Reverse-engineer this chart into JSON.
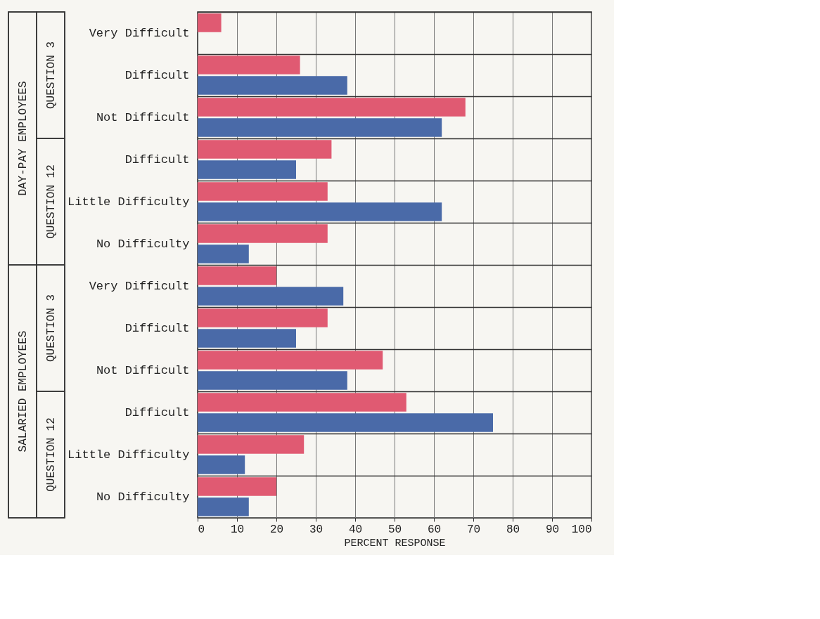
{
  "chart_data": {
    "type": "bar",
    "orientation": "horizontal",
    "xlabel": "PERCENT RESPONSE",
    "categories": [
      "Very Difficult",
      "Difficult",
      "Not Difficult",
      "Difficult",
      "Little Difficulty",
      "No Difficulty",
      "Very Difficult",
      "Difficult",
      "Not Difficult",
      "Difficult",
      "Little Difficulty",
      "No Difficulty"
    ],
    "series": [
      {
        "color": "#e05a72",
        "values": [
          6,
          26,
          68,
          34,
          33,
          33,
          20,
          33,
          47,
          53,
          27,
          20
        ]
      },
      {
        "color": "#4a6aa8",
        "values": [
          0,
          38,
          62,
          25,
          62,
          13,
          37,
          25,
          38,
          75,
          12,
          13
        ]
      }
    ],
    "xlim": [
      0,
      100
    ],
    "xticks": [
      0,
      10,
      20,
      30,
      40,
      50,
      60,
      70,
      80,
      90,
      100
    ],
    "grid": true,
    "annotations": [
      "DAY-PAY EMPLOYEES",
      "SALARIED EMPLOYEES",
      "QUESTION 3",
      "QUESTION 12",
      "QUESTION 3",
      "QUESTION 12"
    ]
  }
}
